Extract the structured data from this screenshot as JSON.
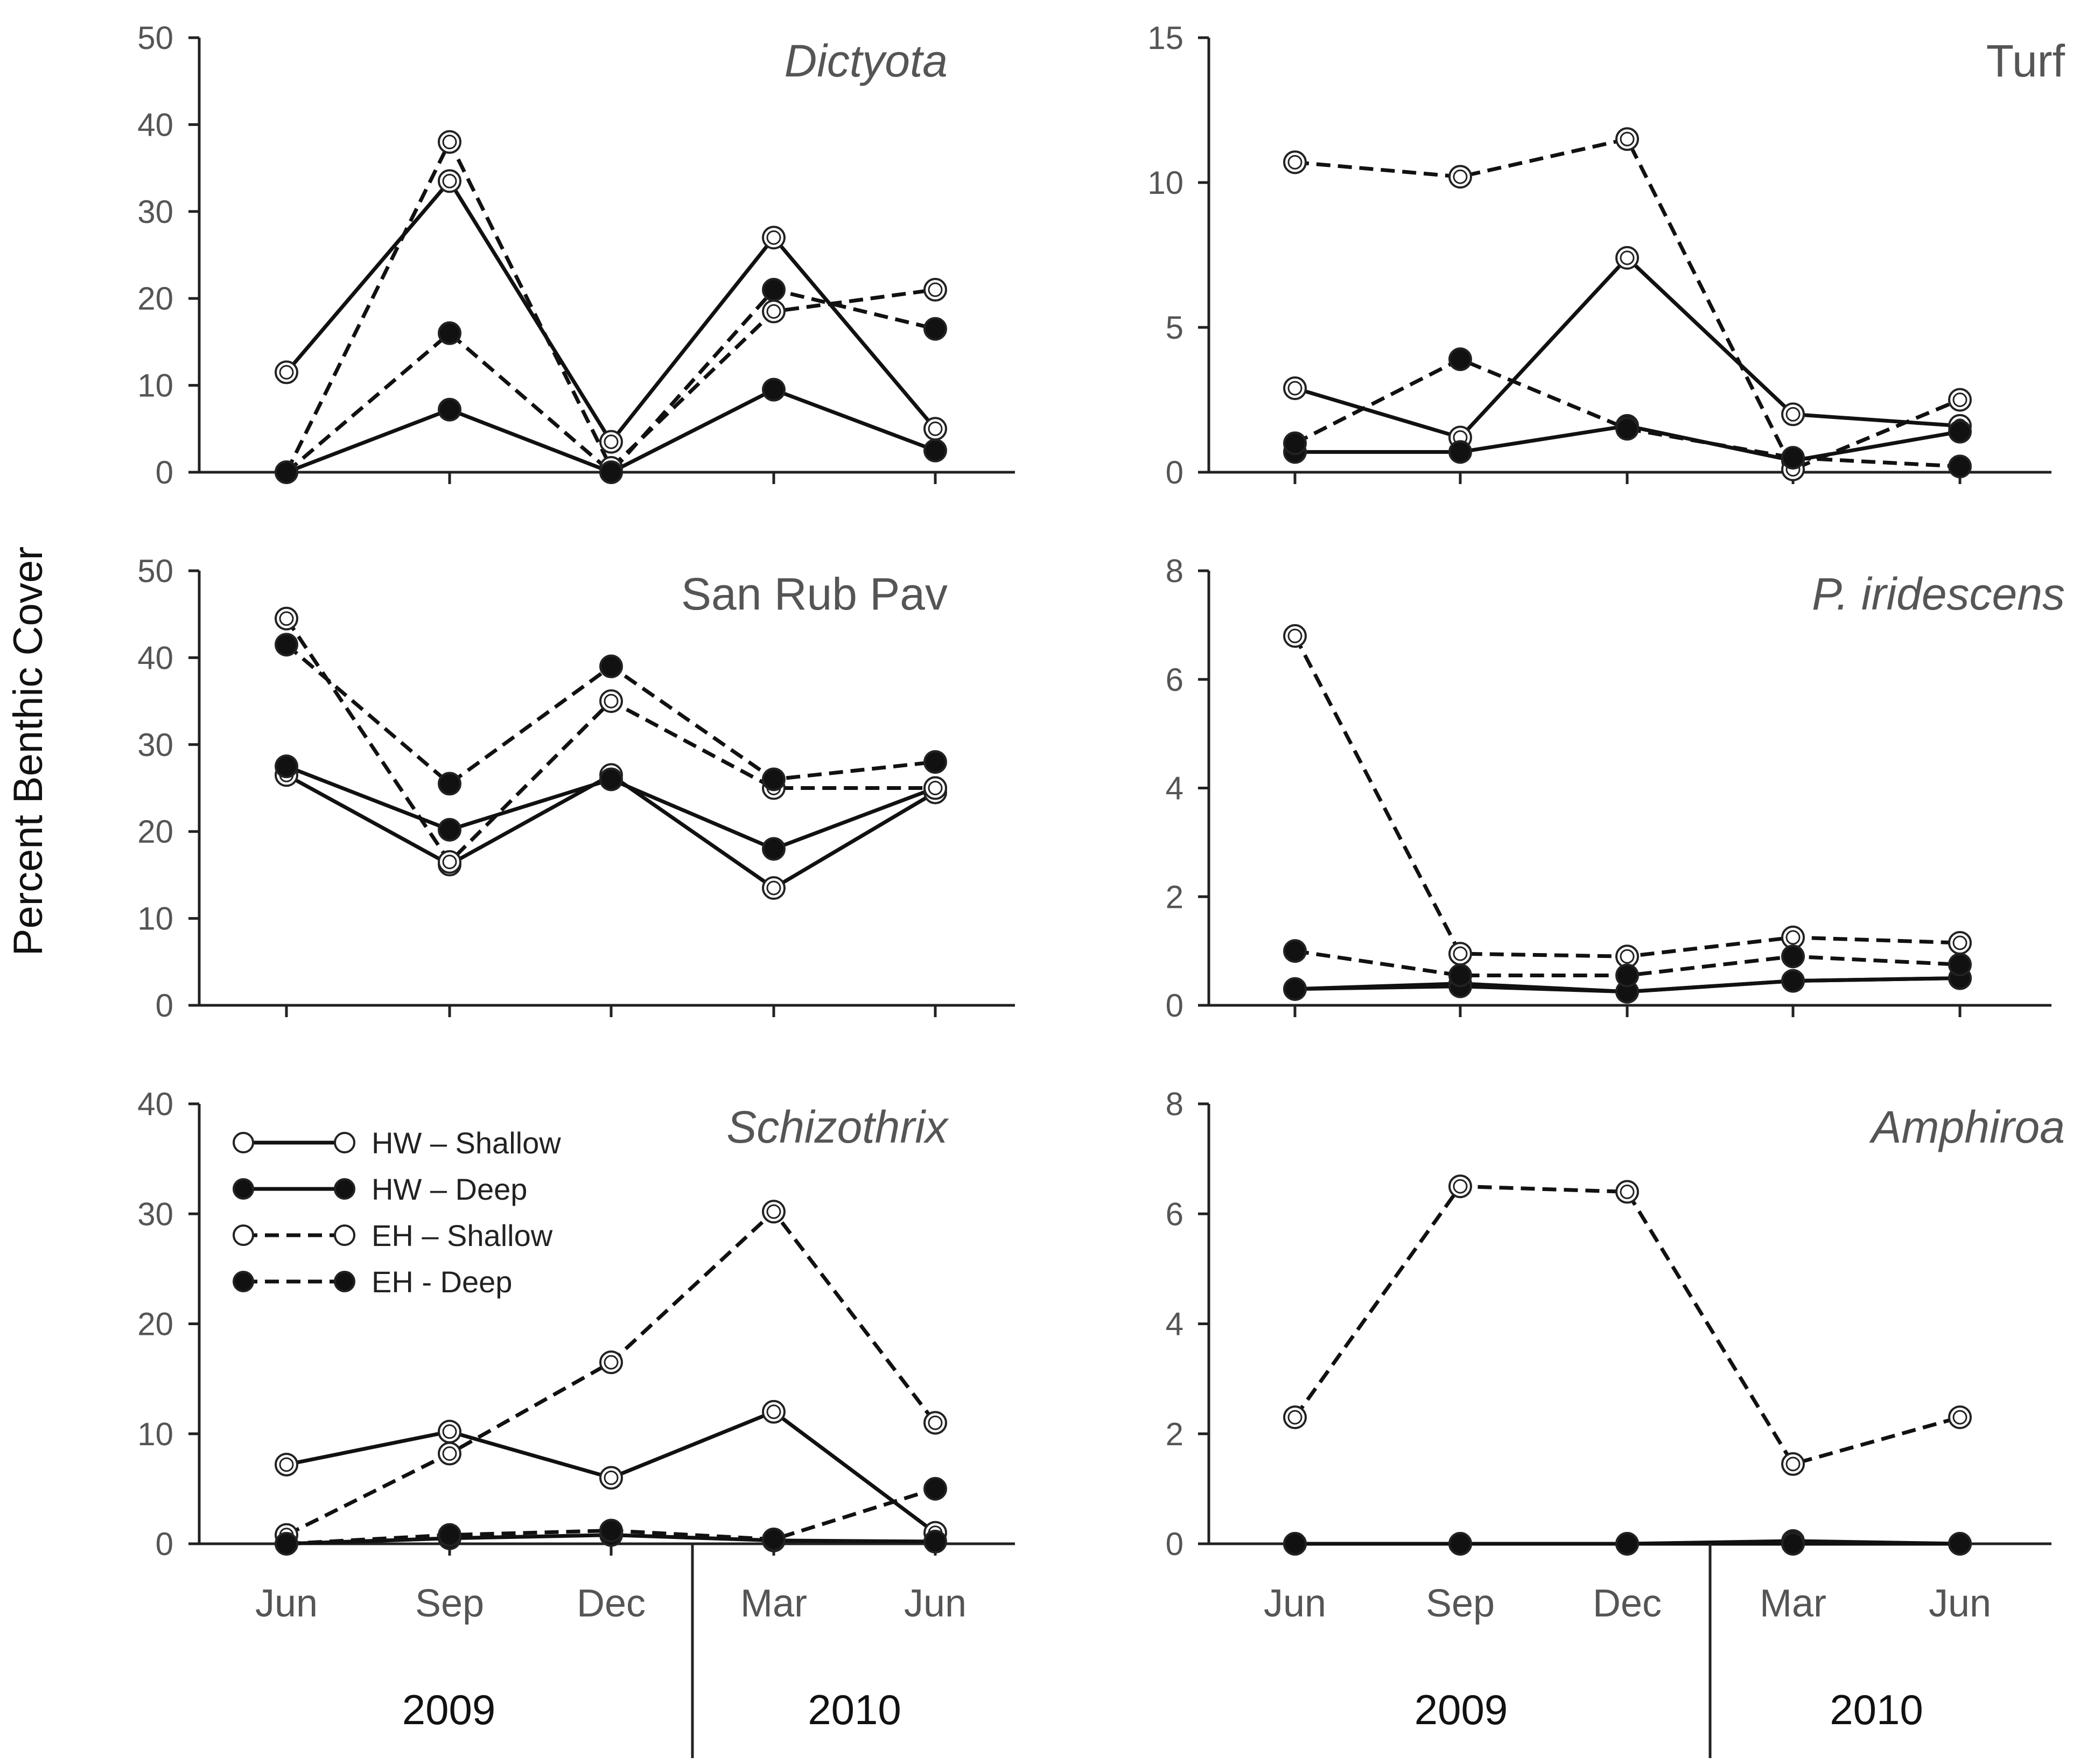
{
  "y_axis_label": "Percent Benthic Cover",
  "legend": [
    {
      "label": "HW – Shallow",
      "style": "solid",
      "fill": "open"
    },
    {
      "label": "HW – Deep",
      "style": "solid",
      "fill": "filled"
    },
    {
      "label": "EH – Shallow",
      "style": "dashed",
      "fill": "open"
    },
    {
      "label": "EH - Deep",
      "style": "dashed",
      "fill": "filled"
    }
  ],
  "x_axis": {
    "months": [
      "Jun",
      "Sep",
      "Dec",
      "Mar",
      "Jun"
    ],
    "years": [
      "2009",
      "2010"
    ]
  },
  "colors": {
    "line": "#111111",
    "filled_marker": "#111111",
    "open_marker": "#ffffff",
    "text": "#555555"
  },
  "chart_data": [
    {
      "type": "line",
      "title": "Dictyota",
      "italic": true,
      "categories": [
        "Jun",
        "Sep",
        "Dec",
        "Mar",
        "Jun"
      ],
      "ylim": [
        0,
        50
      ],
      "yticks": [
        0,
        10,
        20,
        30,
        40,
        50
      ],
      "series": [
        {
          "name": "HW – Shallow",
          "values": [
            11.5,
            33.5,
            3.5,
            27,
            5
          ]
        },
        {
          "name": "HW – Deep",
          "values": [
            0,
            7.2,
            0,
            9.5,
            2.5
          ]
        },
        {
          "name": "EH – Shallow",
          "values": [
            0,
            38,
            0.5,
            18.5,
            21
          ]
        },
        {
          "name": "EH - Deep",
          "values": [
            0,
            16,
            0,
            21,
            16.5
          ]
        }
      ]
    },
    {
      "type": "line",
      "title": "Turf",
      "italic": false,
      "categories": [
        "Jun",
        "Sep",
        "Dec",
        "Mar",
        "Jun"
      ],
      "ylim": [
        0,
        15
      ],
      "yticks": [
        0,
        5,
        10,
        15
      ],
      "series": [
        {
          "name": "HW – Shallow",
          "values": [
            2.9,
            1.2,
            7.4,
            2.0,
            1.6
          ]
        },
        {
          "name": "HW – Deep",
          "values": [
            0.7,
            0.7,
            1.6,
            0.4,
            1.4
          ]
        },
        {
          "name": "EH – Shallow",
          "values": [
            10.7,
            10.2,
            11.5,
            0.1,
            2.5
          ]
        },
        {
          "name": "EH - Deep",
          "values": [
            1.0,
            3.9,
            1.5,
            0.5,
            0.2
          ]
        }
      ]
    },
    {
      "type": "line",
      "title": "San Rub Pav",
      "italic": false,
      "categories": [
        "Jun",
        "Sep",
        "Dec",
        "Mar",
        "Jun"
      ],
      "ylim": [
        0,
        50
      ],
      "yticks": [
        0,
        10,
        20,
        30,
        40,
        50
      ],
      "series": [
        {
          "name": "HW – Shallow",
          "values": [
            26.5,
            16.2,
            26.5,
            13.5,
            24.5
          ]
        },
        {
          "name": "HW – Deep",
          "values": [
            27.5,
            20.2,
            26,
            18,
            25
          ]
        },
        {
          "name": "EH – Shallow",
          "values": [
            44.5,
            16.5,
            35,
            25,
            25
          ]
        },
        {
          "name": "EH - Deep",
          "values": [
            41.5,
            25.5,
            39,
            26,
            28
          ]
        }
      ]
    },
    {
      "type": "line",
      "title": "P. iridescens",
      "italic": true,
      "categories": [
        "Jun",
        "Sep",
        "Dec",
        "Mar",
        "Jun"
      ],
      "ylim": [
        0,
        8
      ],
      "yticks": [
        0,
        2,
        4,
        6,
        8
      ],
      "series": [
        {
          "name": "HW – Shallow",
          "values": [
            0.3,
            0.4,
            0.25,
            0.45,
            0.5
          ]
        },
        {
          "name": "HW – Deep",
          "values": [
            0.3,
            0.35,
            0.25,
            0.45,
            0.5
          ]
        },
        {
          "name": "EH – Shallow",
          "values": [
            6.8,
            0.95,
            0.9,
            1.25,
            1.15
          ]
        },
        {
          "name": "EH - Deep",
          "values": [
            1.0,
            0.55,
            0.55,
            0.9,
            0.75
          ]
        }
      ]
    },
    {
      "type": "line",
      "title": "Schizothrix",
      "italic": true,
      "categories": [
        "Jun",
        "Sep",
        "Dec",
        "Mar",
        "Jun"
      ],
      "ylim": [
        0,
        40
      ],
      "yticks": [
        0,
        10,
        20,
        30,
        40
      ],
      "series": [
        {
          "name": "HW – Shallow",
          "values": [
            7.2,
            10.2,
            6.0,
            12.0,
            1.0
          ]
        },
        {
          "name": "HW – Deep",
          "values": [
            0,
            0.5,
            0.8,
            0.3,
            0.2
          ]
        },
        {
          "name": "EH – Shallow",
          "values": [
            0.8,
            8.2,
            16.5,
            30.2,
            11.0
          ]
        },
        {
          "name": "EH - Deep",
          "values": [
            0,
            0.8,
            1.2,
            0.4,
            5.0
          ]
        }
      ]
    },
    {
      "type": "line",
      "title": "Amphiroa",
      "italic": true,
      "categories": [
        "Jun",
        "Sep",
        "Dec",
        "Mar",
        "Jun"
      ],
      "ylim": [
        0,
        8
      ],
      "yticks": [
        0,
        2,
        4,
        6,
        8
      ],
      "series": [
        {
          "name": "HW – Shallow",
          "values": [
            0,
            0,
            0,
            0,
            0
          ]
        },
        {
          "name": "HW – Deep",
          "values": [
            0,
            0,
            0,
            0.05,
            0
          ]
        },
        {
          "name": "EH – Shallow",
          "values": [
            2.3,
            6.5,
            6.4,
            1.45,
            2.3
          ]
        },
        {
          "name": "EH - Deep",
          "values": [
            0,
            0,
            0,
            0,
            0
          ]
        }
      ]
    }
  ]
}
